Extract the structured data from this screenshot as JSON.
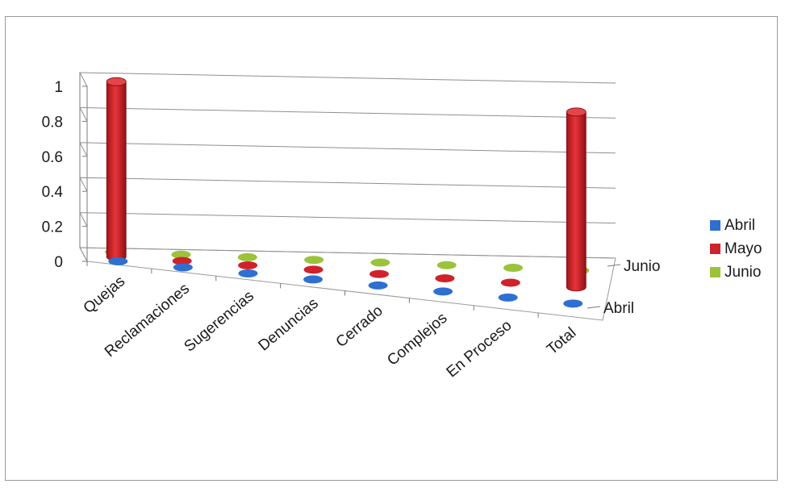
{
  "chart_data": {
    "type": "bar",
    "subtype": "3d-cylinder",
    "title": "",
    "xlabel": "",
    "ylabel": "",
    "categories": [
      "Quejas",
      "Reclamaciones",
      "Sugerencias",
      "Denuncias",
      "Cerrado",
      "Complejos",
      "En Proceso",
      "Total"
    ],
    "series": [
      {
        "name": "Abril",
        "color": "#2e6fd0",
        "values": [
          0,
          0,
          0,
          0,
          0,
          0,
          0,
          0
        ]
      },
      {
        "name": "Mayo",
        "color": "#d0222a",
        "values": [
          1,
          0,
          0,
          0,
          0,
          0,
          0,
          1
        ]
      },
      {
        "name": "Junio",
        "color": "#9bc33a",
        "values": [
          0,
          0,
          0,
          0,
          0,
          0,
          0,
          0
        ]
      }
    ],
    "y_ticks": [
      "0",
      "0.2",
      "0.4",
      "0.6",
      "0.8",
      "1"
    ],
    "ylim": [
      0,
      1
    ],
    "depth_labels": [
      "Junio",
      "Abril"
    ],
    "grid": true,
    "legend_position": "right"
  }
}
